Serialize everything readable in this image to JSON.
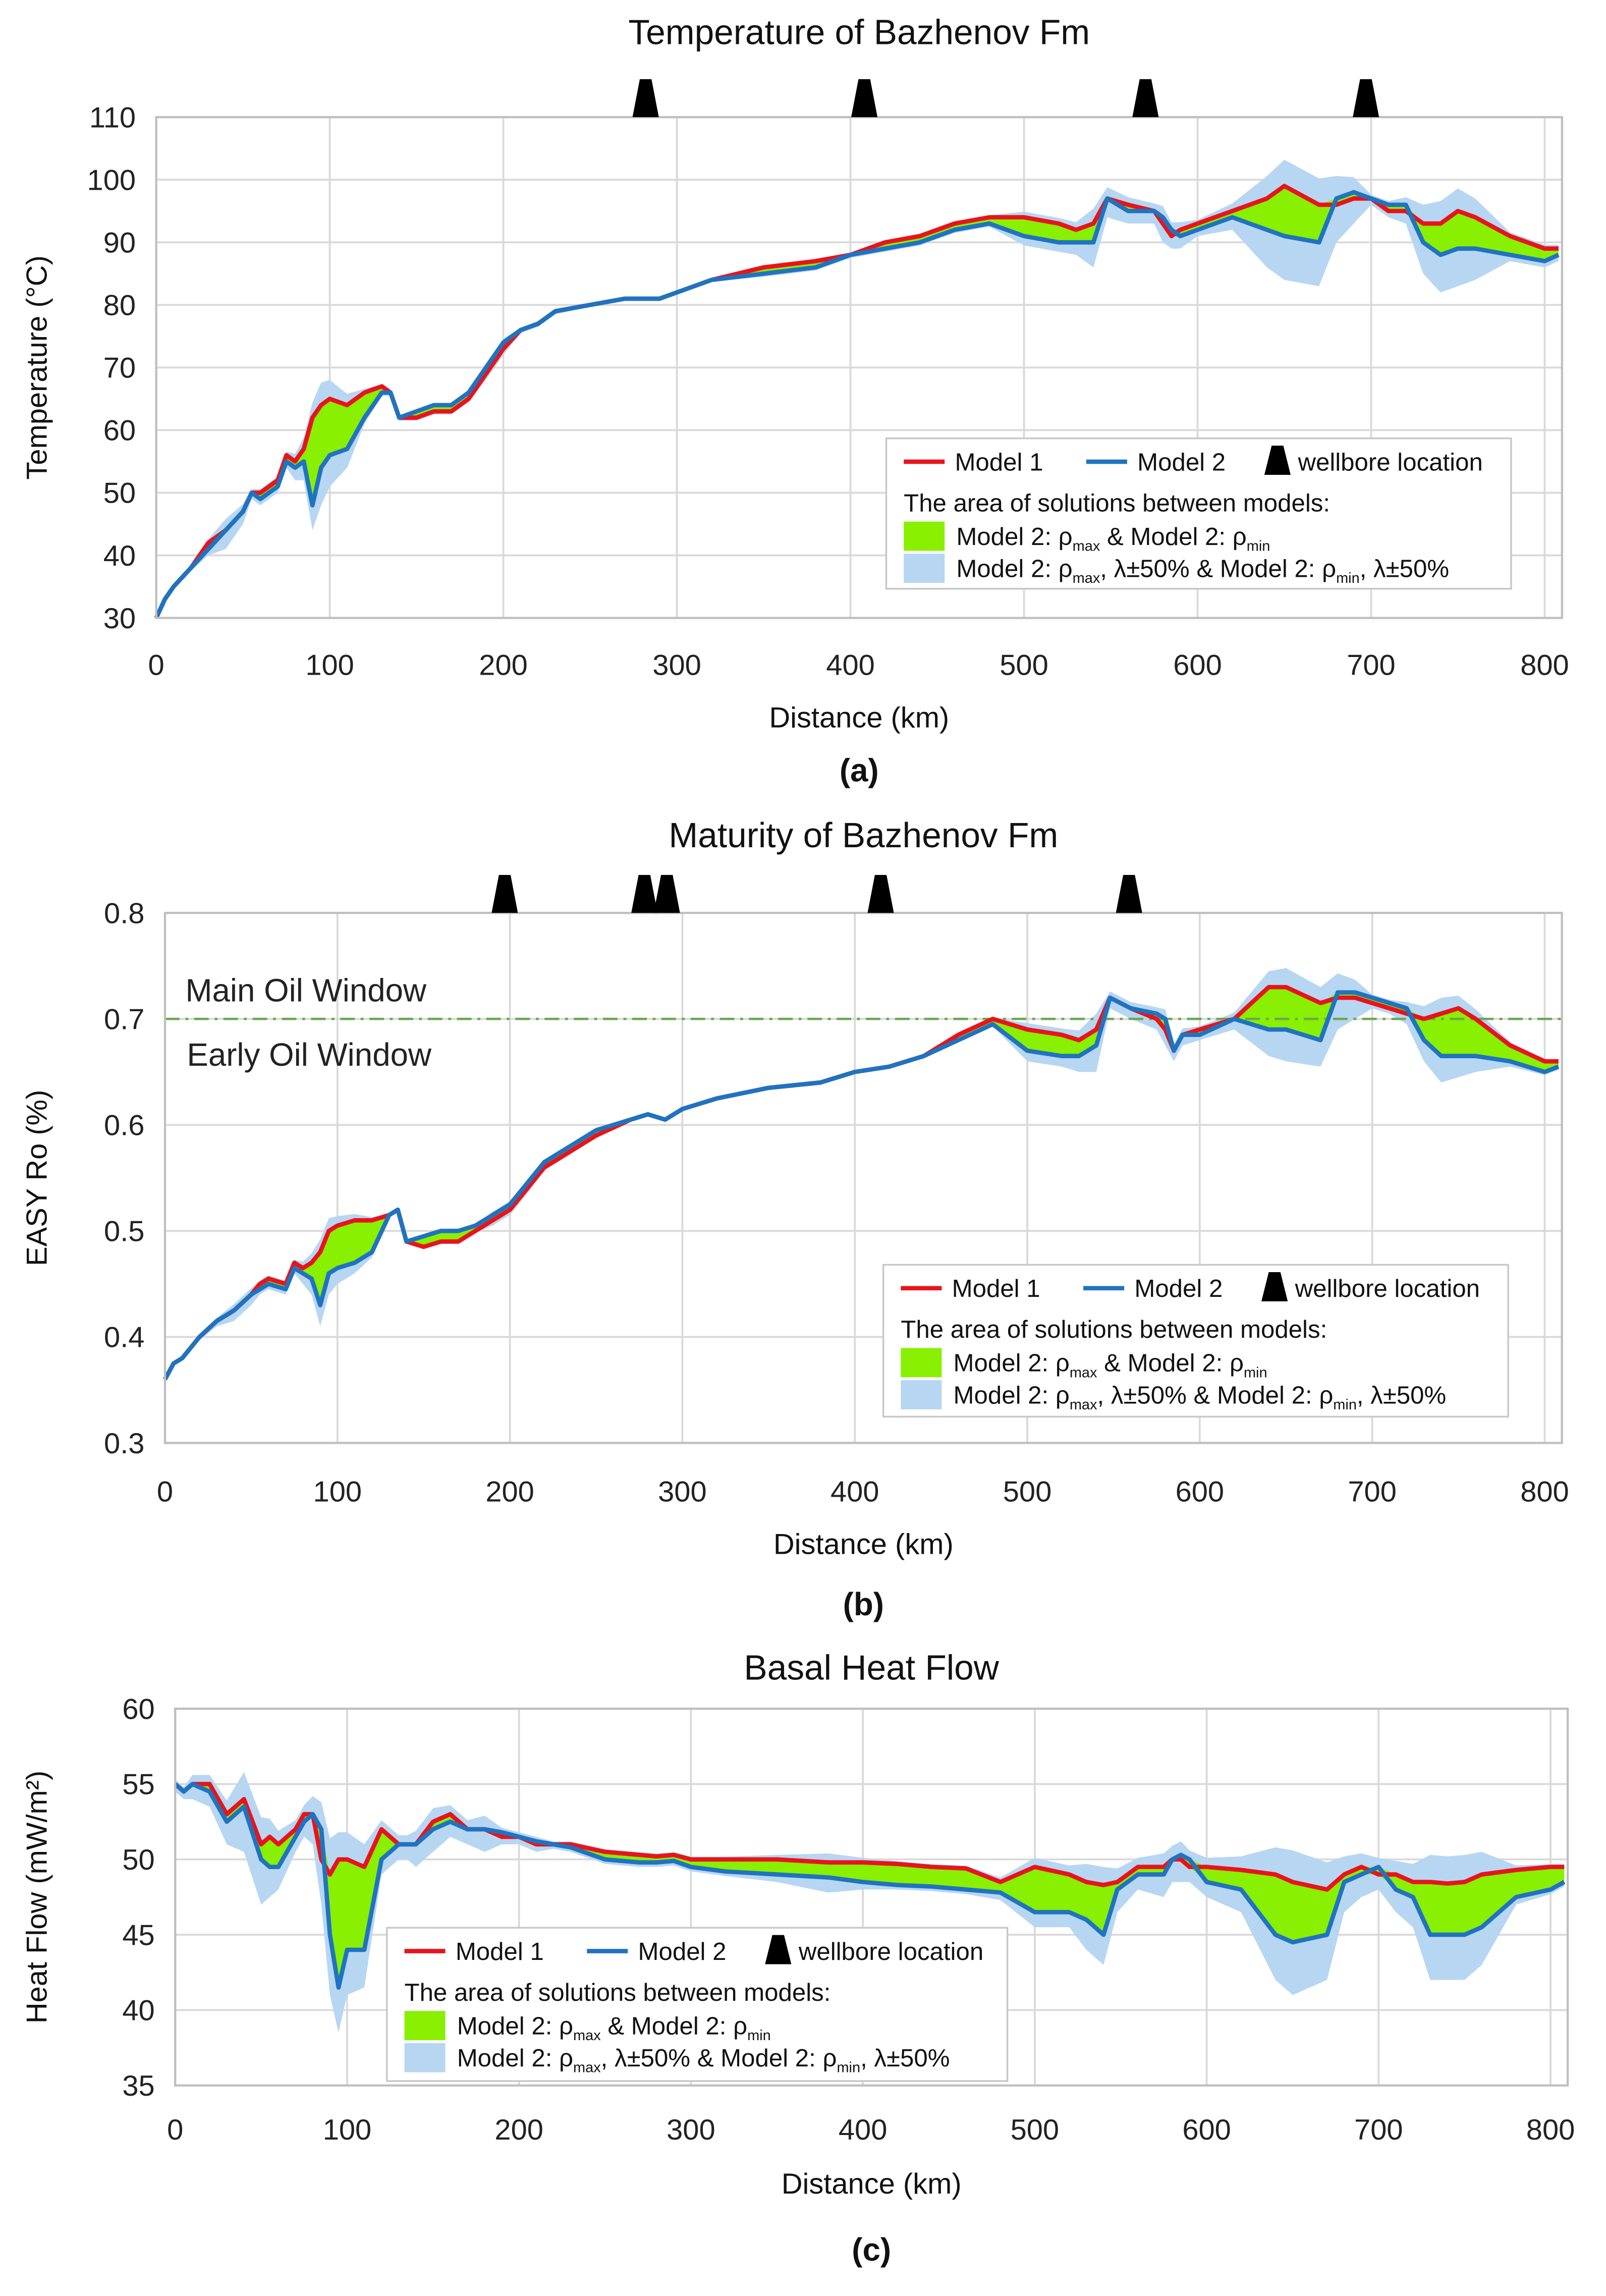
{
  "x_km": [
    0,
    5,
    10,
    20,
    30,
    40,
    50,
    55,
    60,
    70,
    75,
    80,
    85,
    90,
    95,
    100,
    110,
    120,
    130,
    135,
    140,
    150,
    160,
    170,
    180,
    190,
    200,
    210,
    220,
    230,
    250,
    270,
    280,
    290,
    300,
    320,
    350,
    380,
    400,
    420,
    440,
    460,
    480,
    500,
    520,
    530,
    540,
    548,
    560,
    575,
    580,
    585,
    590,
    600,
    620,
    640,
    650,
    670,
    680,
    690,
    700,
    710,
    720,
    730,
    740,
    750,
    760,
    780,
    800,
    808
  ],
  "legend": {
    "model1": "Model 1",
    "model2": "Model 2",
    "wellbore": "wellbore location",
    "area_heading": "The area of solutions between models:",
    "green_parts": [
      "Model 2: ρ",
      "max",
      " & Model 2: ρ",
      "min"
    ],
    "blue_parts": [
      "Model 2: ρ",
      "max",
      ", λ±50% & Model 2: ρ",
      "min",
      ", λ±50%"
    ]
  },
  "colors": {
    "model1": "#e8141b",
    "model2": "#1f73c0",
    "green_band": "#88f000",
    "blue_band": "#b7d6f2",
    "oil_line": "#6aa84f",
    "grid": "#d9d9d9"
  },
  "chart_data": [
    {
      "type": "line",
      "id": "a",
      "title": "Temperature of Bazhenov Fm",
      "xlabel": "Distance (km)",
      "ylabel": "Temperature (°C)",
      "caption": "(a)",
      "xlim": [
        0,
        810
      ],
      "ylim": [
        30,
        110
      ],
      "xticks": [
        "0",
        "100",
        "200",
        "300",
        "400",
        "500",
        "600",
        "700",
        "800"
      ],
      "yticks": [
        "30",
        "40",
        "50",
        "60",
        "70",
        "80",
        "90",
        "100",
        "110"
      ],
      "grid": true,
      "legend_position": "bottom-right",
      "wellbores_km": [
        282,
        408,
        570,
        697
      ],
      "series": [
        {
          "name": "Model 1",
          "values": [
            30,
            33,
            35,
            38,
            42,
            44,
            47,
            50,
            50,
            52,
            56,
            55,
            57,
            62,
            64,
            65,
            64,
            66,
            67,
            66,
            62,
            62,
            63,
            63,
            65,
            69,
            73,
            76,
            77,
            79,
            80,
            81,
            81,
            81,
            82,
            84,
            86,
            87,
            88,
            90,
            91,
            93,
            94,
            94,
            93,
            92,
            93,
            97,
            96,
            95,
            93,
            91,
            92,
            93,
            95,
            97,
            99,
            96,
            96,
            97,
            97,
            95,
            95,
            93,
            93,
            95,
            94,
            91,
            89,
            89
          ]
        },
        {
          "name": "Model 2",
          "values": [
            30,
            33,
            35,
            38,
            41,
            44,
            47,
            50,
            49,
            51,
            55,
            54,
            55,
            48,
            54,
            56,
            57,
            62,
            66,
            66,
            62,
            63,
            64,
            64,
            66,
            70,
            74,
            76,
            77,
            79,
            80,
            81,
            81,
            81,
            82,
            84,
            85,
            86,
            88,
            89,
            90,
            92,
            93,
            91,
            90,
            90,
            90,
            97,
            95,
            95,
            94,
            92,
            91,
            92,
            94,
            92,
            91,
            90,
            97,
            98,
            97,
            96,
            96,
            90,
            88,
            89,
            89,
            88,
            87,
            88
          ]
        }
      ],
      "lambda_band_extra": [
        0,
        0,
        0,
        0.5,
        1,
        3,
        2,
        1,
        1,
        1,
        1,
        2,
        3,
        4,
        6,
        5,
        3,
        1,
        0.5,
        0.5,
        0.5,
        0.5,
        0.5,
        0.5,
        0.5,
        1,
        1,
        0.5,
        0.5,
        0.5,
        0.3,
        0.3,
        0.3,
        0.3,
        0.3,
        0.3,
        0.5,
        0.5,
        0.5,
        0.5,
        0.5,
        0.5,
        0.5,
        1.5,
        1.5,
        2,
        4,
        3,
        2,
        2,
        3,
        2,
        2,
        1,
        2,
        6,
        7,
        7,
        6,
        4,
        1,
        1,
        2,
        5,
        6,
        6,
        5,
        1,
        1,
        1
      ]
    },
    {
      "type": "line",
      "id": "b",
      "title": "Maturity of Bazhenov Fm",
      "xlabel": "Distance (km)",
      "ylabel": "EASY Ro (%)",
      "caption": "(b)",
      "xlim": [
        0,
        810
      ],
      "ylim": [
        0.3,
        0.8
      ],
      "xticks": [
        "0",
        "100",
        "200",
        "300",
        "400",
        "500",
        "600",
        "700",
        "800"
      ],
      "yticks": [
        "0.3",
        "0.4",
        "0.5",
        "0.6",
        "0.7",
        "0.8"
      ],
      "grid": true,
      "legend_position": "bottom-right",
      "wellbores_km": [
        197,
        278,
        291,
        415,
        559
      ],
      "threshold": {
        "value": 0.7,
        "above_label": "Main Oil Window",
        "below_label": "Early Oil Window"
      },
      "series": [
        {
          "name": "Model 1",
          "values": [
            0.36,
            0.375,
            0.38,
            0.4,
            0.415,
            0.425,
            0.44,
            0.45,
            0.455,
            0.45,
            0.47,
            0.465,
            0.47,
            0.48,
            0.5,
            0.505,
            0.51,
            0.51,
            0.515,
            0.52,
            0.49,
            0.485,
            0.49,
            0.49,
            0.5,
            0.51,
            0.52,
            0.54,
            0.56,
            0.57,
            0.59,
            0.605,
            0.61,
            0.605,
            0.615,
            0.625,
            0.635,
            0.64,
            0.65,
            0.655,
            0.665,
            0.685,
            0.7,
            0.69,
            0.685,
            0.68,
            0.69,
            0.72,
            0.71,
            0.7,
            0.69,
            0.67,
            0.685,
            0.69,
            0.7,
            0.73,
            0.73,
            0.715,
            0.72,
            0.72,
            0.715,
            0.71,
            0.705,
            0.7,
            0.705,
            0.71,
            0.7,
            0.675,
            0.66,
            0.66
          ]
        },
        {
          "name": "Model 2",
          "values": [
            0.36,
            0.375,
            0.38,
            0.4,
            0.415,
            0.425,
            0.44,
            0.445,
            0.45,
            0.445,
            0.465,
            0.46,
            0.455,
            0.43,
            0.46,
            0.465,
            0.47,
            0.48,
            0.515,
            0.52,
            0.49,
            0.495,
            0.5,
            0.5,
            0.505,
            0.515,
            0.525,
            0.545,
            0.565,
            0.575,
            0.595,
            0.605,
            0.61,
            0.605,
            0.615,
            0.625,
            0.635,
            0.64,
            0.65,
            0.655,
            0.665,
            0.68,
            0.695,
            0.67,
            0.665,
            0.665,
            0.675,
            0.72,
            0.71,
            0.705,
            0.7,
            0.67,
            0.685,
            0.685,
            0.7,
            0.69,
            0.69,
            0.68,
            0.725,
            0.725,
            0.72,
            0.715,
            0.71,
            0.68,
            0.665,
            0.665,
            0.665,
            0.66,
            0.65,
            0.655
          ]
        }
      ],
      "lambda_band_extra": [
        0,
        0,
        0,
        0.003,
        0.005,
        0.01,
        0.01,
        0.005,
        0.005,
        0.005,
        0.005,
        0.01,
        0.015,
        0.02,
        0.02,
        0.015,
        0.01,
        0.005,
        0.002,
        0.002,
        0.002,
        0.002,
        0.002,
        0.002,
        0.002,
        0.005,
        0.005,
        0.005,
        0.003,
        0.003,
        0.002,
        0.002,
        0.002,
        0.002,
        0.002,
        0.002,
        0.002,
        0.002,
        0.002,
        0.002,
        0.002,
        0.002,
        0.002,
        0.01,
        0.01,
        0.015,
        0.025,
        0.01,
        0.01,
        0.01,
        0.015,
        0.01,
        0.01,
        0.005,
        0.01,
        0.025,
        0.03,
        0.025,
        0.03,
        0.02,
        0.005,
        0.005,
        0.01,
        0.02,
        0.025,
        0.02,
        0.015,
        0.005,
        0.003,
        0.003
      ]
    },
    {
      "type": "line",
      "id": "c",
      "title": "Basal Heat Flow",
      "xlabel": "Distance (km)",
      "ylabel": "Heat Flow (mW/m²)",
      "caption": "(c)",
      "xlim": [
        0,
        810
      ],
      "ylim": [
        35,
        60
      ],
      "xticks": [
        "0",
        "100",
        "200",
        "300",
        "400",
        "500",
        "600",
        "700",
        "800"
      ],
      "yticks": [
        "35",
        "40",
        "45",
        "50",
        "55",
        "60"
      ],
      "grid": true,
      "legend_position": "bottom-left",
      "wellbores_km": [],
      "series": [
        {
          "name": "Model 1",
          "values": [
            55,
            54.5,
            55,
            55,
            53,
            54,
            51,
            51.5,
            51,
            52,
            53,
            53,
            50,
            49,
            50,
            50,
            49.5,
            52,
            51,
            51,
            51,
            52.5,
            53,
            52,
            52,
            51.5,
            51.5,
            51,
            51,
            51,
            50.5,
            50.3,
            50.2,
            50.3,
            50,
            50,
            50,
            49.8,
            49.8,
            49.7,
            49.5,
            49.4,
            48.5,
            49.5,
            49,
            48.5,
            48.3,
            48.5,
            49.5,
            49.5,
            50,
            50,
            49.5,
            49.5,
            49.3,
            49,
            48.5,
            48,
            49,
            49.5,
            49,
            49,
            48.5,
            48.5,
            48.4,
            48.5,
            49,
            49.3,
            49.5,
            49.5
          ]
        },
        {
          "name": "Model 2",
          "values": [
            55,
            54.5,
            55,
            54.5,
            52.5,
            53.5,
            50,
            49.5,
            49.5,
            51.5,
            52.5,
            53,
            52,
            45,
            41.5,
            44,
            44,
            50,
            51,
            51,
            51,
            52,
            52.5,
            52,
            52,
            51.8,
            51.5,
            51.2,
            51,
            50.8,
            50,
            49.8,
            49.8,
            49.9,
            49.5,
            49.2,
            49,
            48.8,
            48.5,
            48.3,
            48.2,
            48,
            47.8,
            46.5,
            46.5,
            46,
            45,
            48,
            49,
            49,
            50,
            50.3,
            50,
            48.5,
            48,
            45,
            44.5,
            45,
            48.5,
            49,
            49.5,
            48,
            47.5,
            45,
            45,
            45,
            45.5,
            47.5,
            48,
            48.5
          ]
        }
      ],
      "lambda_band_extra": [
        0.5,
        0.5,
        1,
        1,
        1.5,
        3,
        3,
        2,
        1.5,
        1,
        1,
        2,
        3,
        4,
        3,
        3,
        2.5,
        1,
        1,
        1,
        1.5,
        1.5,
        1,
        1,
        1.5,
        0.5,
        0.5,
        0.5,
        0.3,
        0.3,
        0.3,
        0.3,
        0.3,
        0.3,
        0.3,
        0.3,
        0.5,
        1,
        0.5,
        0.3,
        0.3,
        0.3,
        0.5,
        1,
        1,
        2,
        2,
        1.5,
        1,
        1.5,
        1.5,
        1.5,
        1,
        1,
        1.5,
        3,
        3.5,
        3,
        2,
        1.5,
        1,
        1.5,
        2,
        3,
        3,
        3,
        2.5,
        0.5,
        0.3,
        0.3
      ]
    }
  ]
}
